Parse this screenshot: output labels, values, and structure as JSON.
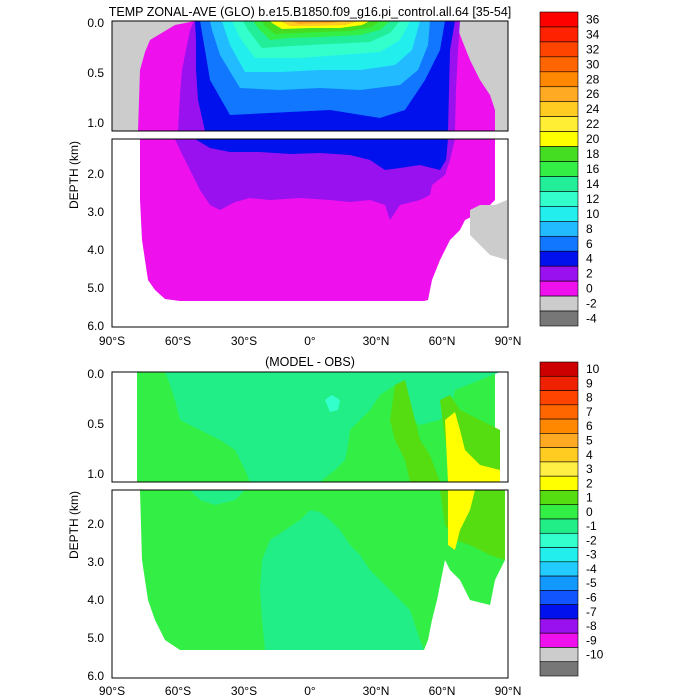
{
  "chart_data": [
    {
      "type": "contour",
      "title": "TEMP ZONAL-AVE (GLO) b.e15.B1850.f09_g16.pi_control.all.64 [35-54]",
      "ylabel": "DEPTH (km)",
      "xlabel": "",
      "x_ticks": [
        "90°S",
        "60°S",
        "30°S",
        "0°",
        "30°N",
        "60°N",
        "90°N"
      ],
      "y_ticks_upper": [
        "0.0",
        "0.5",
        "1.0"
      ],
      "y_ticks_lower": [
        "2.0",
        "3.0",
        "4.0",
        "5.0",
        "6.0"
      ],
      "xlim": [
        -90,
        90
      ],
      "ylim": [
        0,
        6
      ],
      "colorbar": {
        "labels": [
          "36",
          "34",
          "32",
          "30",
          "28",
          "26",
          "24",
          "22",
          "20",
          "18",
          "16",
          "14",
          "12",
          "10",
          "8",
          "6",
          "4",
          "2",
          "0",
          "-2",
          "-4"
        ],
        "colors": [
          "#ff0000",
          "#ff2200",
          "#ff4400",
          "#ff6600",
          "#ff8800",
          "#ffaa22",
          "#ffcc22",
          "#ffee33",
          "#ffff00",
          "#44dd22",
          "#33ee44",
          "#22ee99",
          "#33ffcc",
          "#22eeee",
          "#22bbff",
          "#1177ff",
          "#0011ee",
          "#9911ee",
          "#ee11ee",
          "#cccccc",
          "#777777"
        ]
      }
    },
    {
      "type": "contour",
      "title": "(MODEL - OBS)",
      "ylabel": "DEPTH (km)",
      "xlabel": "",
      "x_ticks": [
        "90°S",
        "60°S",
        "30°S",
        "0°",
        "30°N",
        "60°N",
        "90°N"
      ],
      "y_ticks_upper": [
        "0.0",
        "0.5",
        "1.0"
      ],
      "y_ticks_lower": [
        "2.0",
        "3.0",
        "4.0",
        "5.0",
        "6.0"
      ],
      "xlim": [
        -90,
        90
      ],
      "ylim": [
        0,
        6
      ],
      "colorbar": {
        "labels": [
          "10",
          "9",
          "8",
          "7",
          "6",
          "5",
          "4",
          "3",
          "2",
          "1",
          "0",
          "-1",
          "-2",
          "-3",
          "-4",
          "-5",
          "-6",
          "-7",
          "-8",
          "-9",
          "-10"
        ],
        "colors": [
          "#cc0000",
          "#ee2200",
          "#ff4400",
          "#ff6600",
          "#ff8800",
          "#ffaa22",
          "#ffcc22",
          "#ffee44",
          "#ffff00",
          "#55dd11",
          "#33ee44",
          "#22ee88",
          "#33ffcc",
          "#22eeee",
          "#22ccff",
          "#1199ff",
          "#1155ff",
          "#0011ee",
          "#9911ee",
          "#ee11ee",
          "#cccccc",
          "#777777"
        ]
      }
    }
  ]
}
